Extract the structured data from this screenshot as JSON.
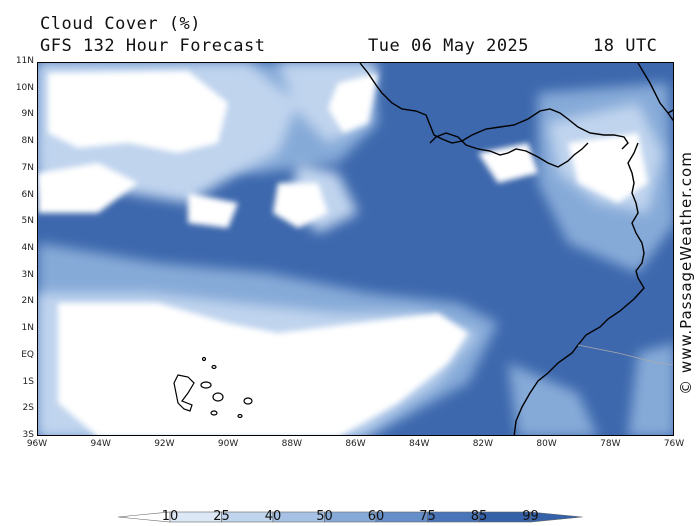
{
  "header": {
    "title": "Cloud Cover (%)",
    "subtitle": "GFS 132 Hour Forecast",
    "date": "Tue 06 May 2025",
    "time": "18 UTC"
  },
  "watermark": "© www.PassageWeather.com",
  "axes": {
    "lat_labels": [
      "11N",
      "10N",
      "9N",
      "8N",
      "7N",
      "6N",
      "5N",
      "4N",
      "3N",
      "2N",
      "1N",
      "EQ",
      "1S",
      "2S",
      "3S"
    ],
    "lon_labels": [
      "96W",
      "94W",
      "92W",
      "90W",
      "88W",
      "86W",
      "84W",
      "82W",
      "80W",
      "78W",
      "76W"
    ]
  },
  "colorbar": {
    "labels": [
      "10",
      "25",
      "40",
      "50",
      "60",
      "75",
      "85",
      "99"
    ],
    "colors": [
      "#ffffff",
      "#dde8f6",
      "#c0d4ee",
      "#a6c1e4",
      "#86aad8",
      "#668fca",
      "#4a75b8",
      "#3461a8"
    ]
  },
  "map_colors": {
    "ocean_base": "#3d68ad",
    "coastline": "#000000",
    "border": "#aaaaaa"
  }
}
